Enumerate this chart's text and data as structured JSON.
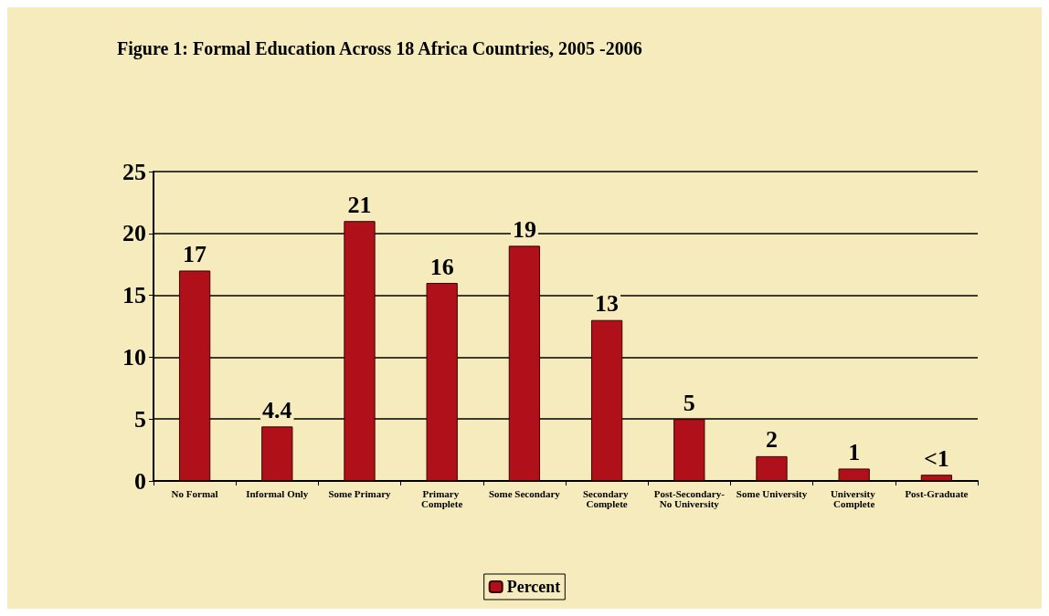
{
  "chart_data": {
    "type": "bar",
    "title": "Figure 1: Formal Education Across 18 Africa Countries, 2005 -2006",
    "categories": [
      "No Formal",
      "Informal Only",
      "Some Primary",
      "Primary Complete",
      "Some Secondary",
      "Secondary Complete",
      "Post-Secondary-No University",
      "Some University",
      "University Complete",
      "Post-Graduate"
    ],
    "series": [
      {
        "name": "Percent",
        "color": "#b0101a",
        "values": [
          17,
          4.4,
          21,
          16,
          19,
          13,
          5,
          2,
          1,
          0.5
        ],
        "value_labels": [
          "17",
          "4.4",
          "21",
          "16",
          "19",
          "13",
          "5",
          "2",
          "1",
          "<1"
        ]
      }
    ],
    "ylim": [
      0,
      25
    ],
    "yticks": [
      0,
      5,
      10,
      15,
      20,
      25
    ],
    "grid": "y",
    "legend": "bottom"
  }
}
